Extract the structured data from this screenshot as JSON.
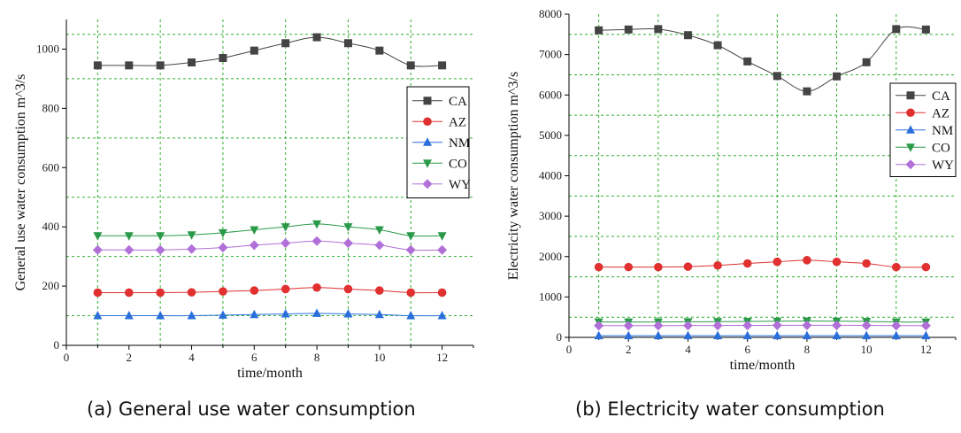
{
  "chart_data": [
    {
      "type": "line",
      "caption": "(a) General use water consumption",
      "xlabel": "time/month",
      "ylabel": "General use water consumption m^3/s",
      "xlim": [
        0,
        13
      ],
      "ylim": [
        0,
        1100
      ],
      "xticks": [
        0,
        2,
        4,
        6,
        8,
        10,
        12
      ],
      "yticks": [
        0,
        200,
        400,
        600,
        800,
        1000
      ],
      "grid": "dashed-green",
      "legend_position": "right",
      "x": [
        1,
        2,
        3,
        4,
        5,
        6,
        7,
        8,
        9,
        10,
        11,
        12
      ],
      "series": [
        {
          "name": "CA",
          "color": "#444444",
          "marker": "square",
          "values": [
            945,
            945,
            945,
            955,
            970,
            995,
            1020,
            1040,
            1020,
            995,
            945,
            945
          ]
        },
        {
          "name": "AZ",
          "color": "#e03030",
          "marker": "circle",
          "values": [
            178,
            178,
            178,
            179,
            182,
            185,
            190,
            195,
            190,
            185,
            178,
            178
          ]
        },
        {
          "name": "NM",
          "color": "#2a6fdb",
          "marker": "triangle-up",
          "values": [
            100,
            100,
            100,
            100,
            102,
            104,
            106,
            108,
            106,
            104,
            100,
            100
          ]
        },
        {
          "name": "CO",
          "color": "#2a9a4a",
          "marker": "triangle-down",
          "values": [
            370,
            370,
            370,
            373,
            380,
            390,
            400,
            410,
            400,
            390,
            370,
            370
          ]
        },
        {
          "name": "WY",
          "color": "#b070d8",
          "marker": "diamond",
          "values": [
            322,
            322,
            322,
            325,
            330,
            338,
            345,
            352,
            345,
            338,
            322,
            322
          ]
        }
      ]
    },
    {
      "type": "line",
      "caption": "(b) Electricity water consumption",
      "xlabel": "time/month",
      "ylabel": "Electricity water consumption m^3/s",
      "xlim": [
        0,
        13
      ],
      "ylim": [
        0,
        8000
      ],
      "xticks": [
        0,
        2,
        4,
        6,
        8,
        10,
        12
      ],
      "yticks": [
        0,
        1000,
        2000,
        3000,
        4000,
        5000,
        6000,
        7000,
        8000
      ],
      "grid": "dashed-green",
      "legend_position": "right",
      "x": [
        1,
        2,
        3,
        4,
        5,
        6,
        7,
        8,
        9,
        10,
        11,
        12
      ],
      "series": [
        {
          "name": "CA",
          "color": "#444444",
          "marker": "square",
          "values": [
            7600,
            7620,
            7630,
            7480,
            7230,
            6830,
            6470,
            6090,
            6460,
            6810,
            7630,
            7620
          ]
        },
        {
          "name": "AZ",
          "color": "#e03030",
          "marker": "circle",
          "values": [
            1740,
            1740,
            1740,
            1750,
            1780,
            1830,
            1870,
            1910,
            1870,
            1830,
            1740,
            1740
          ]
        },
        {
          "name": "NM",
          "color": "#2a6fdb",
          "marker": "triangle-up",
          "values": [
            40,
            40,
            40,
            40,
            40,
            40,
            40,
            40,
            40,
            40,
            40,
            40
          ]
        },
        {
          "name": "CO",
          "color": "#2a9a4a",
          "marker": "triangle-down",
          "values": [
            380,
            380,
            380,
            385,
            390,
            395,
            400,
            405,
            400,
            395,
            380,
            380
          ]
        },
        {
          "name": "WY",
          "color": "#b070d8",
          "marker": "diamond",
          "values": [
            290,
            290,
            290,
            292,
            294,
            296,
            298,
            300,
            298,
            296,
            290,
            290
          ]
        }
      ]
    }
  ]
}
